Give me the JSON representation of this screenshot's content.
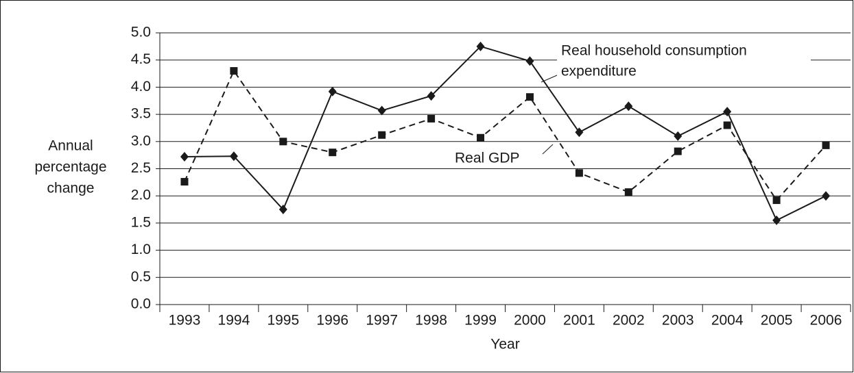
{
  "chart_data": {
    "type": "line",
    "ylabel": [
      "Annual",
      "percentage",
      "change"
    ],
    "xlabel": "Year",
    "categories": [
      "1993",
      "1994",
      "1995",
      "1996",
      "1997",
      "1998",
      "1999",
      "2000",
      "2001",
      "2002",
      "2003",
      "2004",
      "2005",
      "2006"
    ],
    "series": [
      {
        "color": "#1a1a1a",
        "line_style": "solid",
        "marker": "diamond",
        "values": [
          2.72,
          2.73,
          1.75,
          3.92,
          3.57,
          3.84,
          4.75,
          4.48,
          3.17,
          3.65,
          3.1,
          3.55,
          1.55,
          2.0
        ]
      },
      {
        "color": "#1a1a1a",
        "line_style": "dashed",
        "marker": "square",
        "values": [
          2.26,
          4.3,
          3.0,
          2.8,
          3.12,
          3.42,
          3.07,
          3.82,
          2.42,
          2.07,
          2.82,
          3.3,
          1.92,
          2.93
        ]
      }
    ],
    "annotations": [
      [
        "Real household consumption",
        "expenditure"
      ],
      [
        "Real GDP"
      ]
    ],
    "ylim": [
      0,
      5
    ],
    "yticks": [
      {
        "value": 0,
        "label": "0.0"
      },
      0.5,
      {
        "value": 1,
        "label": "1.0"
      },
      1.5,
      {
        "value": 2,
        "label": "2.0"
      },
      2.5,
      {
        "value": 3,
        "label": "3.0"
      },
      3.5,
      {
        "value": 4,
        "label": "4.0"
      },
      4.5,
      {
        "value": 5,
        "label": "5.0"
      }
    ],
    "grid": true
  }
}
